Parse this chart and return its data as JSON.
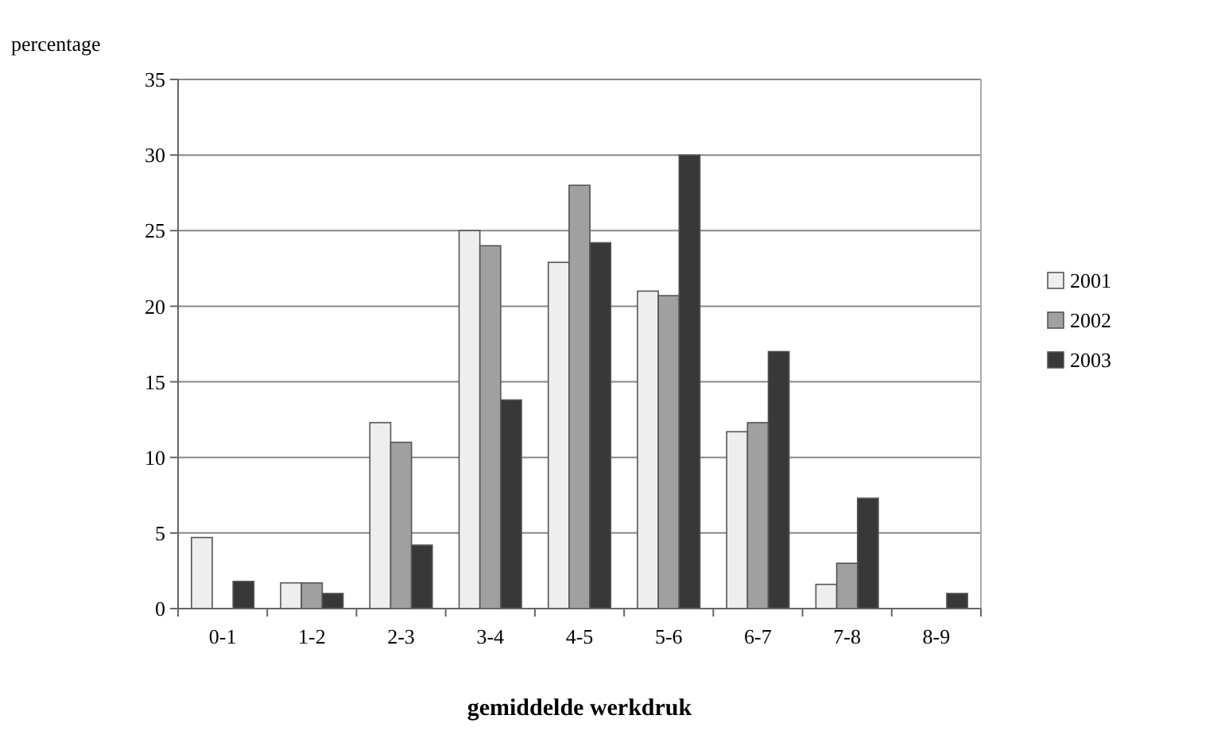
{
  "chart_data": {
    "type": "bar",
    "xlabel": "gemiddelde werkdruk",
    "ylabel": "percentage",
    "categories": [
      "0-1",
      "1-2",
      "2-3",
      "3-4",
      "4-5",
      "5-6",
      "6-7",
      "7-8",
      "8-9"
    ],
    "series": [
      {
        "name": "2001",
        "color": "#eeeeee",
        "values": [
          4.7,
          1.7,
          12.3,
          25,
          22.9,
          21,
          11.7,
          1.6,
          0
        ]
      },
      {
        "name": "2002",
        "color": "#a0a0a0",
        "values": [
          0,
          1.7,
          11,
          24,
          28,
          20.7,
          12.3,
          3,
          0
        ]
      },
      {
        "name": "2003",
        "color": "#383838",
        "values": [
          1.8,
          1,
          4.2,
          13.8,
          24.2,
          30,
          17,
          7.3,
          1
        ]
      }
    ],
    "ylim": [
      0,
      35
    ],
    "yticks": [
      0,
      5,
      10,
      15,
      20,
      25,
      30,
      35
    ],
    "grid": "y",
    "legend": "right"
  }
}
